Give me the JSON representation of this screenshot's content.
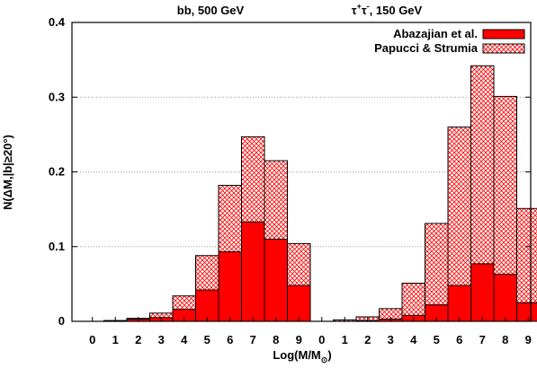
{
  "colors": {
    "abazajian": "#ff0000",
    "papucci": "#ff0000",
    "grid": "#888888"
  },
  "chart_data": {
    "type": "bar",
    "layout": "stacked-overlay-histogram",
    "ylabel": "N(ΔM,|b|≥20°)",
    "xlabel_main": "Log(M/M",
    "xlabel_sub": "⊙",
    "xlabel_close": ")",
    "ylim": [
      0,
      0.4
    ],
    "yticks": [
      "0",
      "0.1",
      "0.2",
      "0.3",
      "0.4"
    ],
    "ytick_values": [
      0,
      0.1,
      0.2,
      0.3,
      0.4
    ],
    "grid": "horizontal dotted",
    "legend_placement": "top-right",
    "categories": [
      "0",
      "1",
      "2",
      "3",
      "4",
      "5",
      "6",
      "7",
      "8",
      "9"
    ],
    "panels": [
      {
        "title": "bb, 500 GeV",
        "series": [
          {
            "name": "Abazajian et al.",
            "values": [
              0.0,
              0.001,
              0.003,
              0.005,
              0.016,
              0.042,
              0.093,
              0.133,
              0.11,
              0.048
            ]
          },
          {
            "name": "Papucci & Strumia",
            "values": [
              0.0,
              0.001,
              0.004,
              0.011,
              0.034,
              0.088,
              0.182,
              0.247,
              0.215,
              0.104
            ]
          }
        ]
      },
      {
        "title_main": "τ",
        "title_sup1": "+",
        "title_mid": "τ",
        "title_sup2": "-",
        "title_rest": ", 150 GeV",
        "series": [
          {
            "name": "Abazajian et al.",
            "values": [
              0.0,
              0.0,
              0.001,
              0.003,
              0.008,
              0.022,
              0.048,
              0.077,
              0.063,
              0.025
            ]
          },
          {
            "name": "Papucci & Strumia",
            "values": [
              0.0,
              0.002,
              0.006,
              0.017,
              0.051,
              0.131,
              0.26,
              0.342,
              0.301,
              0.151
            ]
          }
        ]
      }
    ],
    "legend": [
      "Abazajian et al.",
      "Papucci & Strumia"
    ]
  }
}
